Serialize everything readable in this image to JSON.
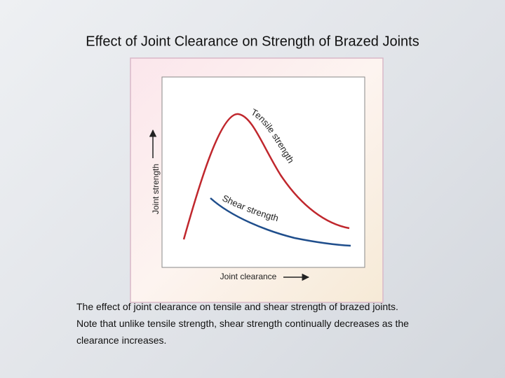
{
  "header": {
    "title": "Effect of Joint Clearance on Strength of Brazed Joints"
  },
  "figure": {
    "y_axis_label": "Joint strength",
    "x_axis_label": "Joint clearance",
    "curves": [
      {
        "label": "Tensile strength"
      },
      {
        "label": "Shear strength"
      }
    ]
  },
  "caption": {
    "lines": [
      "The effect of joint clearance on tensile and shear strength of brazed joints.",
      "Note that unlike tensile strength, shear strength continually decreases as the",
      "clearance increases."
    ]
  }
}
